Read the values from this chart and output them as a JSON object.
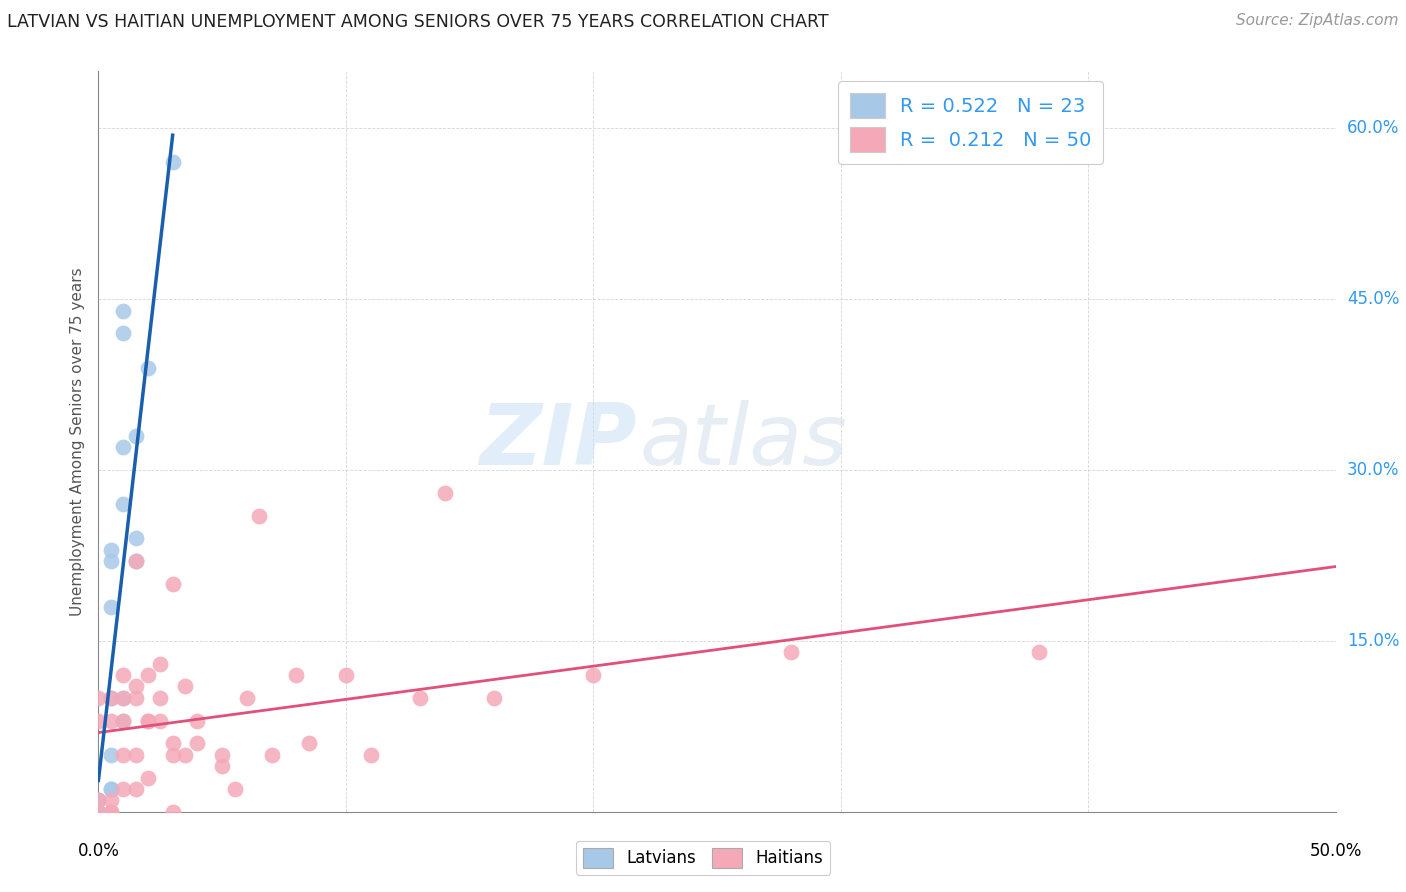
{
  "title": "LATVIAN VS HAITIAN UNEMPLOYMENT AMONG SENIORS OVER 75 YEARS CORRELATION CHART",
  "source": "Source: ZipAtlas.com",
  "ylabel": "Unemployment Among Seniors over 75 years",
  "legend_latvian_R": 0.522,
  "legend_latvian_N": 23,
  "legend_haitian_R": 0.212,
  "legend_haitian_N": 50,
  "latvian_color": "#a8c8e8",
  "haitian_color": "#f4a8b8",
  "trendline_latvian_color": "#1a5fad",
  "trendline_haitian_color": "#e0507a",
  "watermark_zip": "ZIP",
  "watermark_atlas": "atlas",
  "xlim": [
    0.0,
    0.5
  ],
  "ylim": [
    0.0,
    0.65
  ],
  "ytick_positions": [
    0.0,
    0.15,
    0.3,
    0.45,
    0.6
  ],
  "ytick_labels_right": [
    "",
    "15.0%",
    "30.0%",
    "45.0%",
    "60.0%"
  ],
  "xtick_positions": [
    0.0,
    0.1,
    0.2,
    0.3,
    0.4,
    0.5
  ],
  "latvian_x": [
    0.0,
    0.0,
    0.0,
    0.0,
    0.0,
    0.005,
    0.005,
    0.005,
    0.005,
    0.005,
    0.005,
    0.005,
    0.01,
    0.01,
    0.01,
    0.01,
    0.01,
    0.01,
    0.015,
    0.015,
    0.015,
    0.02,
    0.03
  ],
  "latvian_y": [
    0.0,
    0.0,
    0.0,
    0.01,
    0.01,
    0.02,
    0.02,
    0.05,
    0.1,
    0.18,
    0.22,
    0.23,
    0.08,
    0.1,
    0.27,
    0.32,
    0.42,
    0.44,
    0.22,
    0.24,
    0.33,
    0.39,
    0.57
  ],
  "haitian_x": [
    0.0,
    0.0,
    0.0,
    0.0,
    0.005,
    0.005,
    0.005,
    0.005,
    0.005,
    0.01,
    0.01,
    0.01,
    0.01,
    0.01,
    0.015,
    0.015,
    0.015,
    0.015,
    0.015,
    0.02,
    0.02,
    0.02,
    0.02,
    0.025,
    0.025,
    0.025,
    0.03,
    0.03,
    0.03,
    0.03,
    0.035,
    0.035,
    0.04,
    0.04,
    0.05,
    0.05,
    0.055,
    0.06,
    0.065,
    0.07,
    0.08,
    0.085,
    0.1,
    0.11,
    0.13,
    0.14,
    0.16,
    0.2,
    0.28,
    0.38
  ],
  "haitian_y": [
    0.0,
    0.01,
    0.08,
    0.1,
    0.0,
    0.0,
    0.01,
    0.08,
    0.1,
    0.02,
    0.05,
    0.08,
    0.1,
    0.12,
    0.02,
    0.05,
    0.1,
    0.11,
    0.22,
    0.03,
    0.08,
    0.08,
    0.12,
    0.08,
    0.1,
    0.13,
    0.0,
    0.05,
    0.06,
    0.2,
    0.05,
    0.11,
    0.06,
    0.08,
    0.04,
    0.05,
    0.02,
    0.1,
    0.26,
    0.05,
    0.12,
    0.06,
    0.12,
    0.05,
    0.1,
    0.28,
    0.1,
    0.12,
    0.14,
    0.14
  ]
}
